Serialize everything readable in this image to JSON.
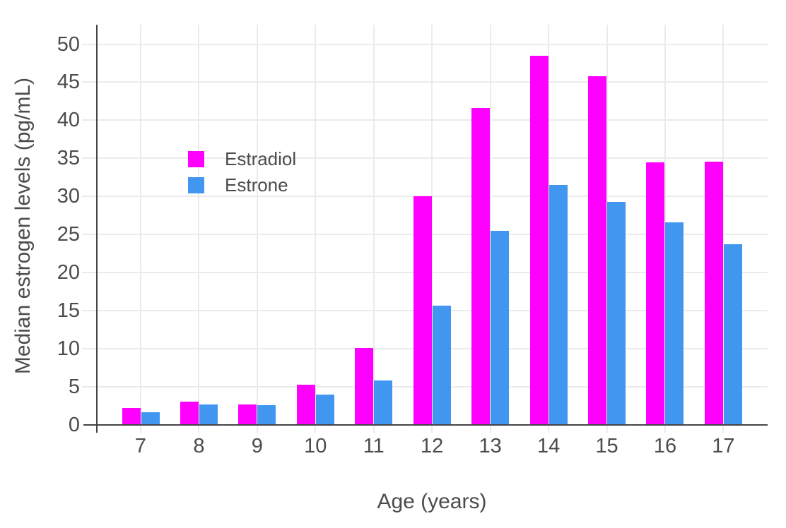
{
  "chart_data": {
    "type": "bar",
    "title": "",
    "xlabel": "Age (years)",
    "ylabel": "Median estrogen levels (pg/mL)",
    "categories": [
      "7",
      "8",
      "9",
      "10",
      "11",
      "12",
      "13",
      "14",
      "15",
      "16",
      "17"
    ],
    "series": [
      {
        "name": "Estradiol",
        "color": "#ff00ff",
        "values": [
          2.2,
          3.1,
          2.7,
          5.3,
          10.1,
          30.0,
          41.6,
          48.5,
          45.8,
          34.5,
          34.6
        ]
      },
      {
        "name": "Estrone",
        "color": "#4196f0",
        "values": [
          1.7,
          2.7,
          2.6,
          4.0,
          5.8,
          15.7,
          25.5,
          31.5,
          29.3,
          26.6,
          23.7
        ]
      }
    ],
    "yticks": [
      0,
      5,
      10,
      15,
      20,
      25,
      30,
      35,
      40,
      45,
      50
    ],
    "ylim": [
      0,
      52.5
    ],
    "grid": true,
    "legend_position": "inside-top-left",
    "colors": {
      "background": "#ffffff",
      "gridline": "#ebebeb",
      "axis_line": "#444444",
      "tick_text": "#4c4c4c"
    }
  }
}
